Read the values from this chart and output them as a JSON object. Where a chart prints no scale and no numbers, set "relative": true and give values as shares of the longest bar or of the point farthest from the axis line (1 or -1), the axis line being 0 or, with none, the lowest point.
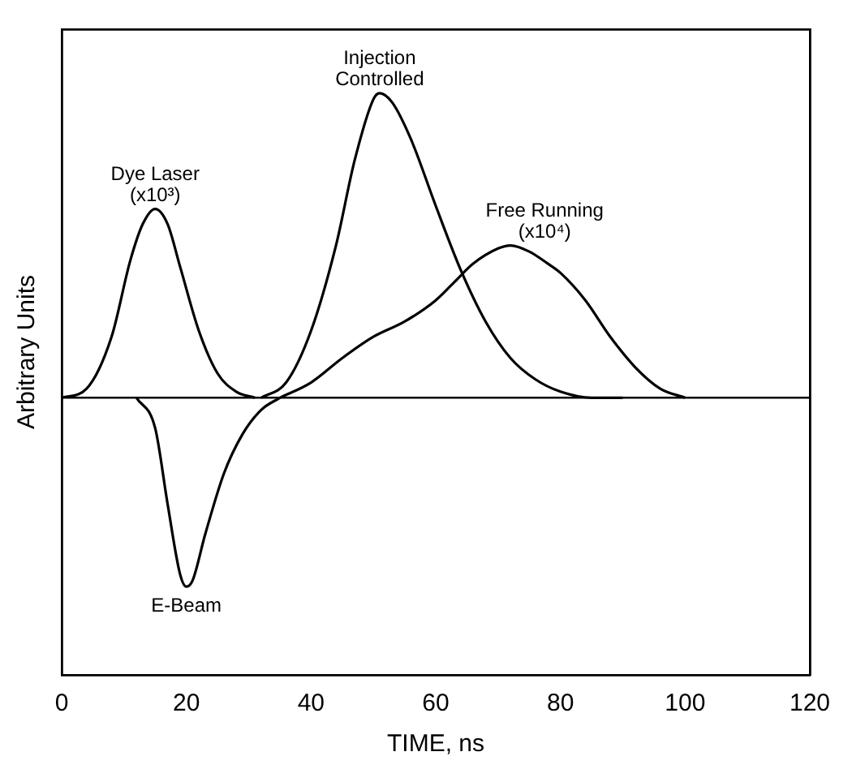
{
  "chart_data": {
    "type": "line",
    "relative": true,
    "xlabel": "TIME, ns",
    "ylabel": "Arbitrary Units",
    "xlim": [
      0,
      120
    ],
    "xticks": [
      0,
      20,
      40,
      60,
      80,
      100,
      120
    ],
    "grid": false,
    "legend": false,
    "marker": "none",
    "line_style": "solid",
    "series": [
      {
        "name": "Dye Laser (x10³)",
        "color": "#000000",
        "x": [
          0,
          4,
          8,
          11,
          13,
          15,
          17,
          19,
          22,
          25,
          28,
          31
        ],
        "values": [
          0,
          0.03,
          0.2,
          0.45,
          0.57,
          0.62,
          0.57,
          0.43,
          0.22,
          0.08,
          0.02,
          0
        ]
      },
      {
        "name": "Injection Controlled",
        "color": "#000000",
        "x": [
          32,
          36,
          40,
          44,
          47,
          50,
          51,
          53,
          56,
          60,
          64,
          68,
          72,
          76,
          80,
          85,
          90
        ],
        "values": [
          0,
          0.05,
          0.22,
          0.5,
          0.78,
          0.98,
          1,
          0.97,
          0.85,
          0.63,
          0.42,
          0.25,
          0.13,
          0.06,
          0.02,
          0,
          0
        ]
      },
      {
        "name": "Free Running (x10⁴)",
        "color": "#000000",
        "x": [
          35,
          40,
          45,
          50,
          55,
          60,
          63,
          66,
          70,
          72,
          75,
          78,
          80,
          84,
          88,
          92,
          96,
          100
        ],
        "values": [
          0,
          0.05,
          0.13,
          0.2,
          0.25,
          0.32,
          0.38,
          0.44,
          0.49,
          0.5,
          0.48,
          0.44,
          0.41,
          0.32,
          0.2,
          0.1,
          0.03,
          0
        ]
      },
      {
        "name": "E-Beam",
        "color": "#000000",
        "x": [
          12,
          15,
          17,
          19,
          20,
          21,
          23,
          26,
          29,
          32,
          35
        ],
        "values": [
          0,
          -0.1,
          -0.35,
          -0.58,
          -0.62,
          -0.6,
          -0.45,
          -0.25,
          -0.12,
          -0.04,
          0
        ]
      }
    ]
  }
}
